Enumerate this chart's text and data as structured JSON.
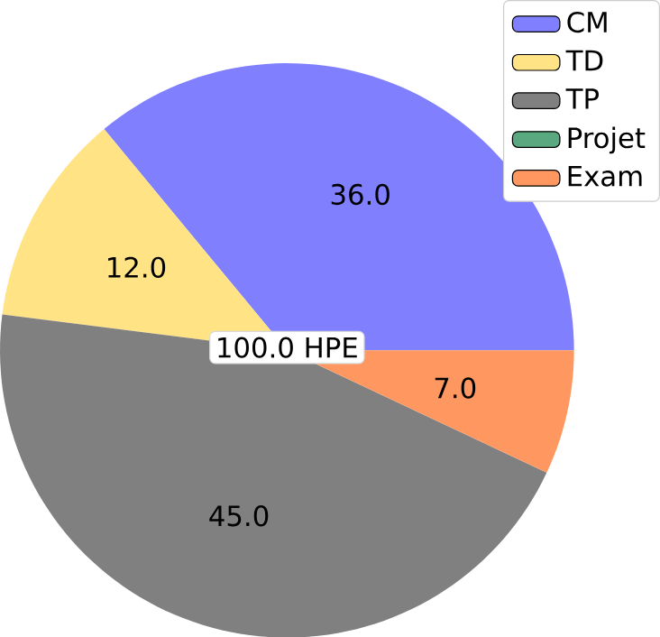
{
  "chart_data": {
    "type": "pie",
    "categories": [
      "CM",
      "TD",
      "TP",
      "Projet",
      "Exam"
    ],
    "values": [
      36,
      12,
      45,
      0,
      7
    ],
    "value_labels": [
      "36.0",
      "12.0",
      "45.0",
      null,
      "7.0"
    ],
    "colors": [
      "#8080ff",
      "#ffe384",
      "#808080",
      "#5aa87f",
      "#ff9860"
    ],
    "legend": "top right",
    "annotations": [
      "100.0 HPE"
    ]
  }
}
